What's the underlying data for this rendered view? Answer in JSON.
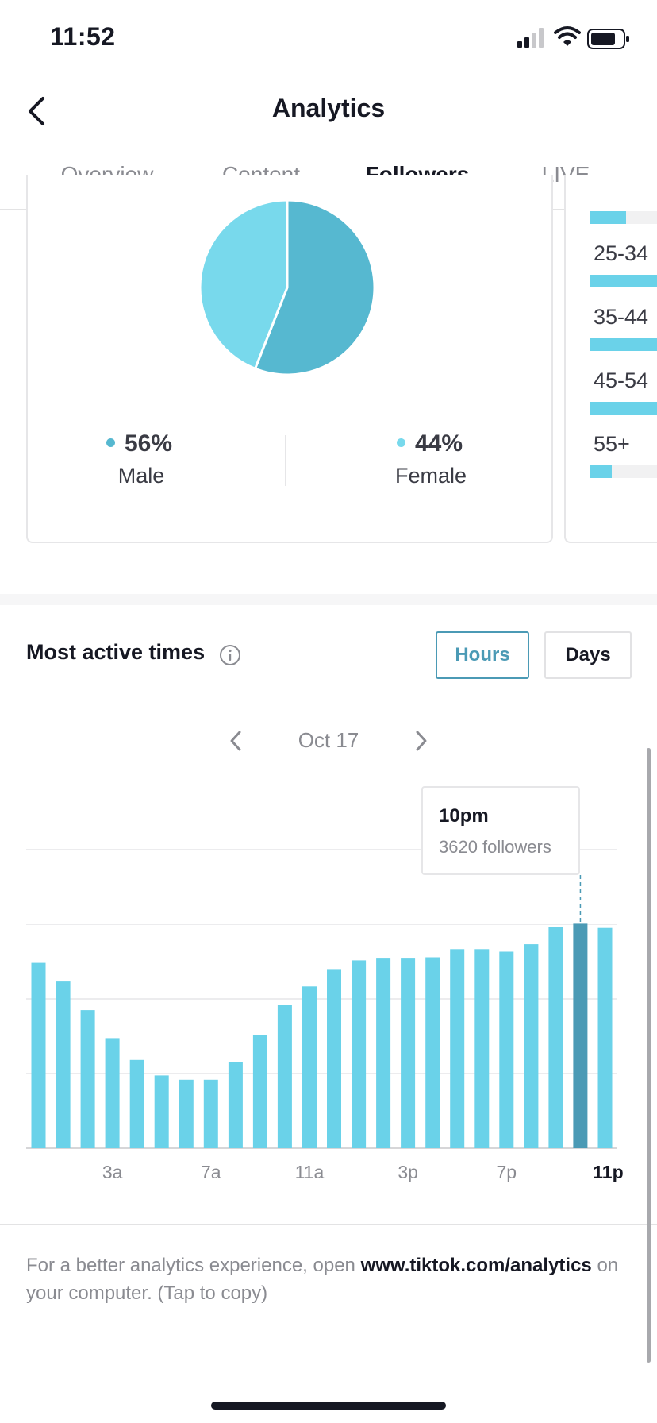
{
  "status_bar": {
    "time": "11:52"
  },
  "header": {
    "title": "Analytics"
  },
  "tabs": [
    {
      "label": "Overview"
    },
    {
      "label": "Content"
    },
    {
      "label": "Followers",
      "active": true
    },
    {
      "label": "LIVE"
    }
  ],
  "gender": {
    "male": {
      "pct": "56%",
      "label": "Male",
      "value": 56
    },
    "female": {
      "pct": "44%",
      "label": "Female",
      "value": 44
    }
  },
  "age": [
    {
      "label": "",
      "fill": 0.5
    },
    {
      "label": "25-34",
      "fill": 1.0
    },
    {
      "label": "35-44",
      "fill": 1.0
    },
    {
      "label": "45-54",
      "fill": 0.95
    },
    {
      "label": "55+",
      "fill": 0.3
    }
  ],
  "most_active": {
    "title": "Most active times",
    "hours_label": "Hours",
    "days_label": "Days",
    "date": "Oct 17",
    "tooltip": {
      "hour": "10pm",
      "followers": "3620 followers"
    }
  },
  "chart_data": {
    "type": "bar",
    "categories": [
      "0",
      "1",
      "2",
      "3",
      "4",
      "5",
      "6",
      "7",
      "8",
      "9",
      "10",
      "11",
      "12",
      "13",
      "14",
      "15",
      "16",
      "17",
      "18",
      "19",
      "20",
      "21",
      "22",
      "23"
    ],
    "x_tick_labels": [
      {
        "index": 3,
        "label": "3a"
      },
      {
        "index": 7,
        "label": "7a"
      },
      {
        "index": 11,
        "label": "11a"
      },
      {
        "index": 15,
        "label": "3p"
      },
      {
        "index": 19,
        "label": "7p"
      },
      {
        "index": 23,
        "label": "11p"
      }
    ],
    "values": [
      2980,
      2680,
      2220,
      1770,
      1420,
      1170,
      1100,
      1100,
      1380,
      1820,
      2300,
      2600,
      2880,
      3020,
      3050,
      3050,
      3070,
      3200,
      3200,
      3160,
      3280,
      3550,
      3620,
      3540
    ],
    "highlight_index": 22,
    "ylim": [
      0,
      4800
    ],
    "grid": true,
    "colors": {
      "bar": "#6ad2e9",
      "highlight": "#4b9ab5"
    }
  },
  "footer": {
    "text_before": "For a better analytics experience, open ",
    "link": "www.tiktok.com/analytics",
    "text_after": " on your computer. (Tap to copy)"
  },
  "colors": {
    "accent": "#4b9ab5",
    "pie_male": "#56b8d0",
    "pie_female": "#78d9ec"
  }
}
